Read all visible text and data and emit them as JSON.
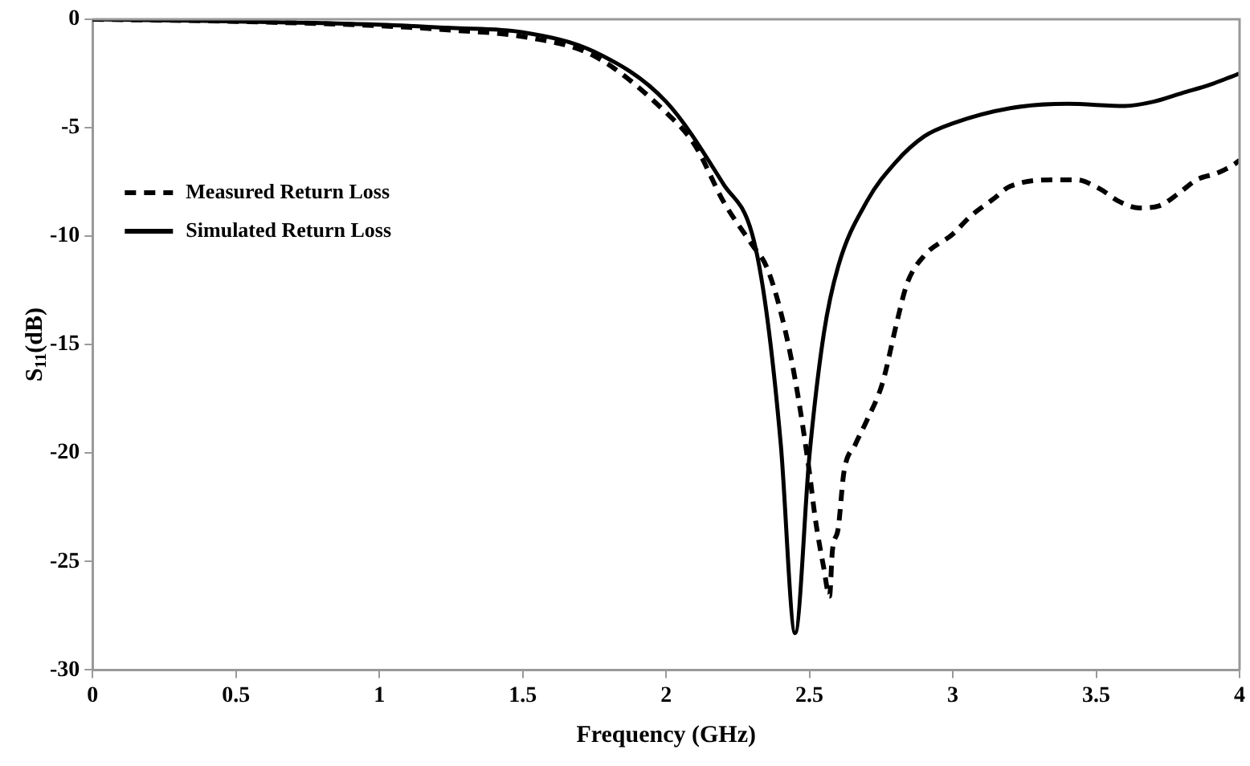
{
  "chart_data": {
    "type": "line",
    "xlabel": "Frequency (GHz)",
    "ylabel": "S$_{11}$(dB)",
    "xlim": [
      0,
      4
    ],
    "xticks": [
      0,
      0.5,
      1,
      1.5,
      2,
      2.5,
      3,
      3.5,
      4
    ],
    "ylim": [
      -30,
      0
    ],
    "yticks": [
      -30,
      -25,
      -20,
      -15,
      -10,
      -5,
      0
    ],
    "grid": false,
    "legend": "top left",
    "marker": "none",
    "series": [
      {
        "name": "Measured Return Loss",
        "color": "#000000",
        "line_style": "dashed",
        "x": [
          0,
          0.5,
          1,
          1.25,
          1.5,
          1.75,
          2,
          2.1,
          2.2,
          2.3,
          2.35,
          2.4,
          2.45,
          2.5,
          2.52,
          2.55,
          2.57,
          2.58,
          2.6,
          2.62,
          2.66,
          2.7,
          2.754,
          2.806,
          2.84,
          2.9,
          3,
          3.06,
          3.14,
          3.2,
          3.37,
          3.43,
          3.51,
          3.58,
          3.65,
          3.72,
          3.79,
          3.85,
          3.92,
          3.98,
          4
        ],
        "values": [
          0,
          -0.1,
          -0.3,
          -0.5,
          -0.8,
          -1.7,
          -4.3,
          -5.8,
          -8.4,
          -10.4,
          -11.4,
          -13.5,
          -16.6,
          -20.9,
          -23,
          -25.3,
          -26.6,
          -24.5,
          -23.5,
          -20.9,
          -19.6,
          -18.5,
          -16.8,
          -13.9,
          -12.2,
          -10.9,
          -9.9,
          -9.1,
          -8.3,
          -7.7,
          -7.4,
          -7.4,
          -7.8,
          -8.4,
          -8.7,
          -8.6,
          -8,
          -7.4,
          -7.1,
          -6.7,
          -6.5
        ]
      },
      {
        "name": "Simulated Return Loss",
        "color": "#000000",
        "line_style": "solid",
        "x": [
          0,
          0.5,
          1,
          1.25,
          1.5,
          1.75,
          2,
          2.2,
          2.3,
          2.35,
          2.4,
          2.45,
          2.5,
          2.55,
          2.6,
          2.7,
          2.8,
          2.9,
          3,
          3.2,
          3.4,
          3.6,
          3.7,
          3.8,
          3.9,
          4
        ],
        "values": [
          0,
          -0.1,
          -0.25,
          -0.4,
          -0.6,
          -1.5,
          -3.8,
          -7.6,
          -9.9,
          -13.5,
          -19.6,
          -28.3,
          -20.1,
          -14.5,
          -11.4,
          -8.4,
          -6.6,
          -5.4,
          -4.8,
          -4.1,
          -3.9,
          -4,
          -3.8,
          -3.4,
          -3,
          -2.5
        ]
      }
    ]
  }
}
